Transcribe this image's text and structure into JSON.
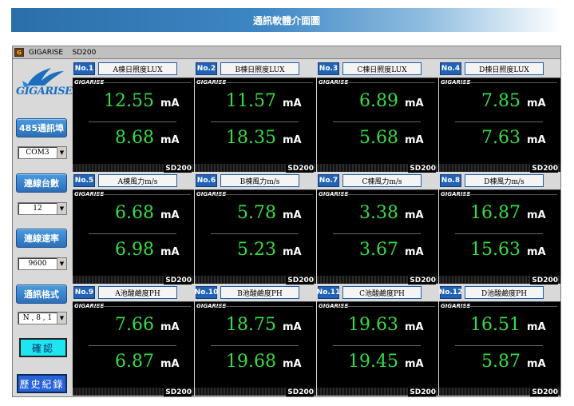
{
  "banner": {
    "title": "通訊軟體介面圖"
  },
  "window": {
    "title": "GIGARISE    SD200",
    "icon": "app-icon"
  },
  "sidebar": {
    "logo": "GIGARISE",
    "port_button": "485通訊埠",
    "port_value": "COM3",
    "count_button": "連線台數",
    "count_value": "12",
    "baud_button": "連線速率",
    "baud_value": "9600",
    "format_button": "通訊格式",
    "format_value": "N , 8 , 1",
    "confirm_button": "確認",
    "history_button": "歷史紀錄"
  },
  "panels": [
    {
      "no": "No.1",
      "label": "A棟日照度LUX",
      "v1": "12.55",
      "v2": "8.68",
      "unit": "mA",
      "brand": "GIGARISE",
      "model": "SD200"
    },
    {
      "no": "No.2",
      "label": "B棟日照度LUX",
      "v1": "11.57",
      "v2": "18.35",
      "unit": "mA",
      "brand": "GIGARISE",
      "model": "SD200"
    },
    {
      "no": "No.3",
      "label": "C棟日照度LUX",
      "v1": "6.89",
      "v2": "5.68",
      "unit": "mA",
      "brand": "GIGARISE",
      "model": "SD200"
    },
    {
      "no": "No.4",
      "label": "D棟日照度LUX",
      "v1": "7.85",
      "v2": "7.63",
      "unit": "mA",
      "brand": "GIGARISE",
      "model": "SD200"
    },
    {
      "no": "No.5",
      "label": "A棟風力m/s",
      "v1": "6.68",
      "v2": "6.98",
      "unit": "mA",
      "brand": "GIGARISE",
      "model": "SD200"
    },
    {
      "no": "No.6",
      "label": "B棟風力m/s",
      "v1": "5.78",
      "v2": "5.23",
      "unit": "mA",
      "brand": "GIGARISE",
      "model": "SD200"
    },
    {
      "no": "No.7",
      "label": "C棟風力m/s",
      "v1": "3.38",
      "v2": "3.67",
      "unit": "mA",
      "brand": "GIGARISE",
      "model": "SD200"
    },
    {
      "no": "No.8",
      "label": "D棟風力m/s",
      "v1": "16.87",
      "v2": "15.63",
      "unit": "mA",
      "brand": "GIGARISE",
      "model": "SD200"
    },
    {
      "no": "No.9",
      "label": "A池酸鹼度PH",
      "v1": "7.66",
      "v2": "6.87",
      "unit": "mA",
      "brand": "GIGARISE",
      "model": "SD200"
    },
    {
      "no": "No.10",
      "label": "B池酸鹼度PH",
      "v1": "18.75",
      "v2": "19.68",
      "unit": "mA",
      "brand": "GIGARISE",
      "model": "SD200"
    },
    {
      "no": "No.11",
      "label": "C池酸鹼度PH",
      "v1": "19.63",
      "v2": "19.45",
      "unit": "mA",
      "brand": "GIGARISE",
      "model": "SD200"
    },
    {
      "no": "No.12",
      "label": "D池酸鹼度PH",
      "v1": "16.51",
      "v2": "5.87",
      "unit": "mA",
      "brand": "GIGARISE",
      "model": "SD200"
    }
  ],
  "colors": {
    "reading": "#33dd44",
    "badge": "#2263b5",
    "confirm": "#1ee6f0",
    "history": "#2a63d8"
  }
}
